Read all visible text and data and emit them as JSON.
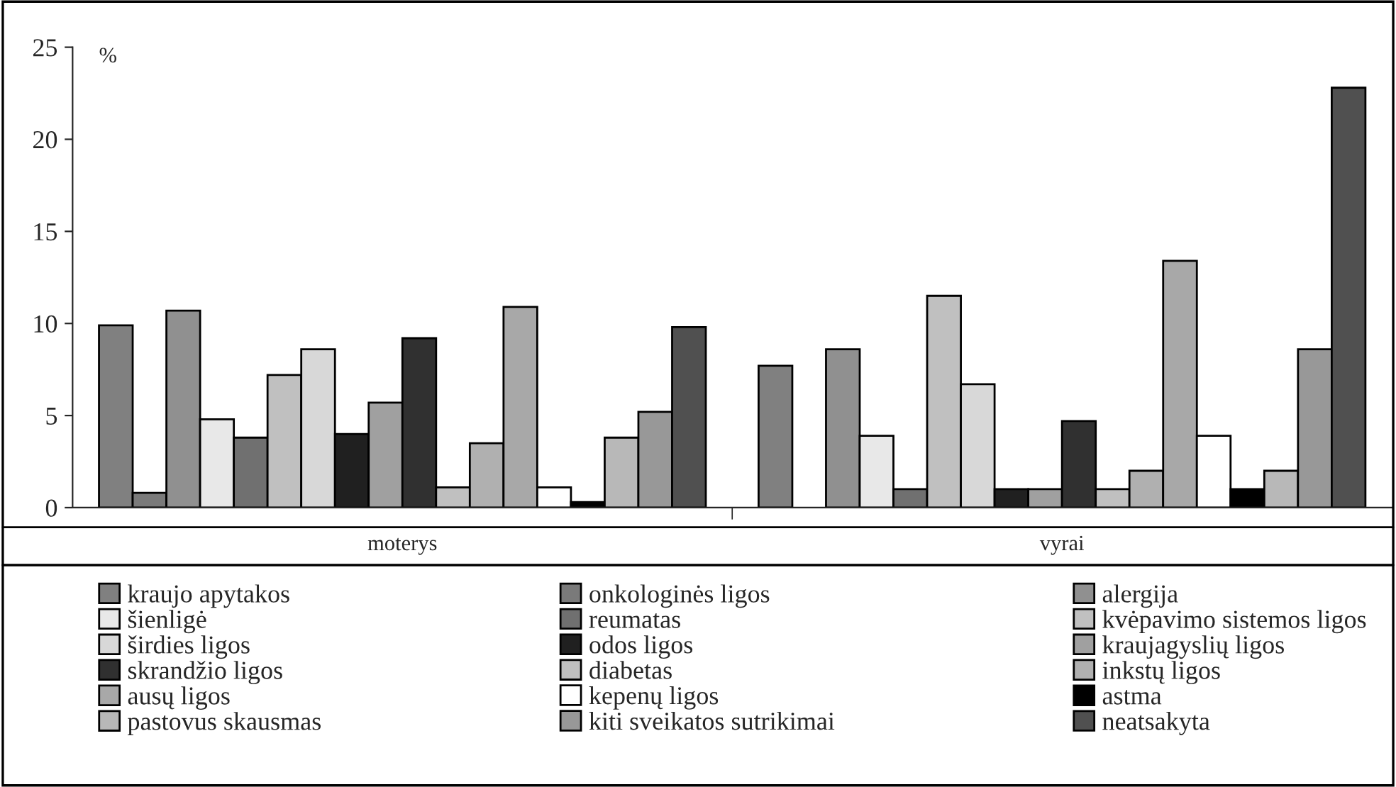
{
  "chart_data": {
    "type": "bar",
    "ylabel": "%",
    "categories": [
      "moterys",
      "vyrai"
    ],
    "series": [
      {
        "name": "kraujo apytakos",
        "color": "#808080",
        "values": [
          9.9,
          7.7
        ]
      },
      {
        "name": "onkologinės ligos",
        "color": "#7a7a7a",
        "values": [
          0.8,
          null
        ]
      },
      {
        "name": "alergija",
        "color": "#909090",
        "values": [
          10.7,
          8.6
        ]
      },
      {
        "name": "šienligė",
        "color": "#e8e8e8",
        "values": [
          4.8,
          3.9
        ]
      },
      {
        "name": "reumatas",
        "color": "#707070",
        "values": [
          3.8,
          1.0
        ]
      },
      {
        "name": "kvėpavimo sistemos ligos",
        "color": "#c0c0c0",
        "values": [
          7.2,
          11.5
        ]
      },
      {
        "name": "širdies ligos",
        "color": "#d8d8d8",
        "values": [
          8.6,
          6.7
        ]
      },
      {
        "name": "odos ligos",
        "color": "#202020",
        "values": [
          4.0,
          1.0
        ]
      },
      {
        "name": "kraujagyslių ligos",
        "color": "#a0a0a0",
        "values": [
          5.7,
          1.0
        ]
      },
      {
        "name": "skrandžio ligos",
        "color": "#303030",
        "values": [
          9.2,
          4.7
        ]
      },
      {
        "name": "diabetas",
        "color": "#c0c0c0",
        "values": [
          1.1,
          1.0
        ]
      },
      {
        "name": "inkstų ligos",
        "color": "#b0b0b0",
        "values": [
          3.5,
          2.0
        ]
      },
      {
        "name": "ausų ligos",
        "color": "#a8a8a8",
        "values": [
          10.9,
          13.4
        ]
      },
      {
        "name": "kepenų ligos",
        "color": "#ffffff",
        "values": [
          1.1,
          3.9
        ]
      },
      {
        "name": "astma",
        "color": "#000000",
        "values": [
          0.3,
          1.0
        ]
      },
      {
        "name": "pastovus skausmas",
        "color": "#b8b8b8",
        "values": [
          3.8,
          2.0
        ]
      },
      {
        "name": "kiti sveikatos sutrikimai",
        "color": "#989898",
        "values": [
          5.2,
          8.6
        ]
      },
      {
        "name": "neatsakyta",
        "color": "#505050",
        "values": [
          9.8,
          22.8
        ]
      }
    ],
    "ylim": [
      0,
      25
    ],
    "yticks": [
      0,
      5,
      10,
      15,
      20,
      25
    ],
    "grid": false,
    "legend": "bottom"
  }
}
